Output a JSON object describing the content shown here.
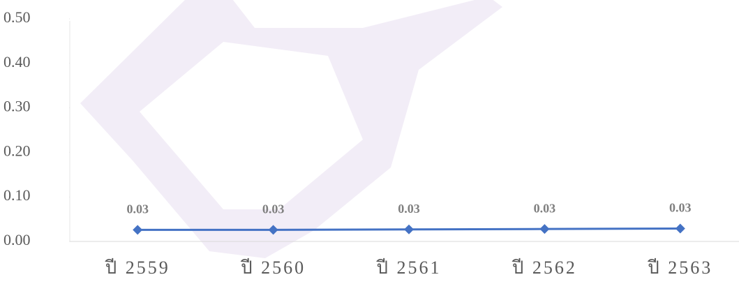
{
  "chart_data": {
    "type": "line",
    "categories": [
      "ปี 2559",
      "ปี 2560",
      "ปี 2561",
      "ปี 2562",
      "ปี 2563"
    ],
    "series": [
      {
        "color": "#4472c4",
        "values": [
          0.026,
          0.026,
          0.027,
          0.028,
          0.029
        ],
        "value_labels": [
          "0.03",
          "0.03",
          "0.03",
          "0.03",
          "0.03"
        ]
      }
    ],
    "ylim": [
      0,
      0.5
    ],
    "yticks": [
      {
        "value": 0,
        "label": "0.00"
      },
      {
        "value": 0.1,
        "label": "0.10"
      },
      {
        "value": 0.2,
        "label": "0.20"
      },
      {
        "value": 0.3,
        "label": "0.30"
      },
      {
        "value": 0.4,
        "label": "0.40"
      },
      {
        "value": 0.5,
        "label": "0.50"
      }
    ]
  }
}
